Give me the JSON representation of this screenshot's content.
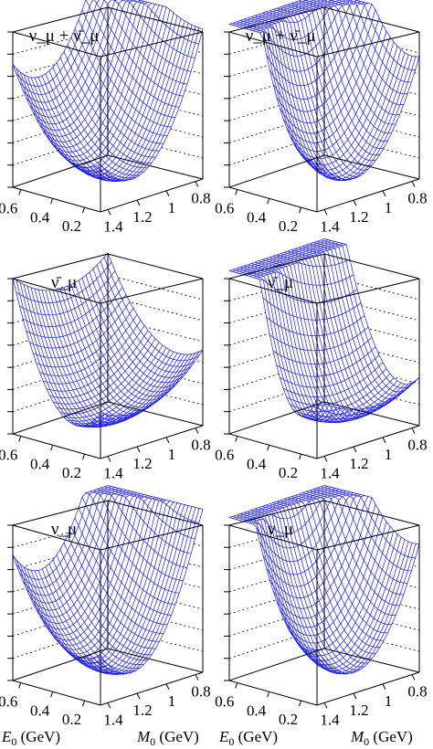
{
  "chart_data": [
    {
      "type": "surface",
      "panel": "top-left",
      "title": "ν_μ + ν̄_μ",
      "x_ticks": [
        "0.6",
        "0.4",
        "0.2"
      ],
      "y_ticks": [
        "1.4",
        "1.2",
        "1",
        "0.8"
      ],
      "surface": {
        "min_E0": 0.2,
        "min_M0": 1.25,
        "curv_E": 0.9,
        "curv_M": 1.7,
        "skew": 0.6,
        "mesh_rows": 26,
        "mesh_cols": 26
      }
    },
    {
      "type": "surface",
      "panel": "top-right",
      "title": "ν_μ + ν̄_μ",
      "x_ticks": [
        "0.6",
        "0.4",
        "0.2"
      ],
      "y_ticks": [
        "1.4",
        "1.2",
        "1",
        "0.8"
      ],
      "surface": {
        "min_E0": 0.15,
        "min_M0": 1.2,
        "curv_E": 2.6,
        "curv_M": 1.6,
        "skew": 0.2,
        "mesh_rows": 26,
        "mesh_cols": 26
      }
    },
    {
      "type": "surface",
      "panel": "middle-left",
      "title": "ν̄_μ",
      "x_ticks": [
        "0.6",
        "0.4",
        "0.2"
      ],
      "y_ticks": [
        "1.4",
        "1.2",
        "1",
        "0.8"
      ],
      "surface": {
        "min_E0": 0.25,
        "min_M0": 1.25,
        "curv_E": 1.6,
        "curv_M": 0.6,
        "skew": 0.1,
        "mesh_rows": 26,
        "mesh_cols": 26
      }
    },
    {
      "type": "surface",
      "panel": "middle-right",
      "title": "ν̄_μ",
      "x_ticks": [
        "0.6",
        "0.4",
        "0.2"
      ],
      "y_ticks": [
        "1.4",
        "1.2",
        "1",
        "0.8"
      ],
      "surface": {
        "min_E0": 0.2,
        "min_M0": 1.1,
        "curv_E": 3.8,
        "curv_M": 0.5,
        "skew": 0.2,
        "mesh_rows": 26,
        "mesh_cols": 26
      }
    },
    {
      "type": "surface",
      "panel": "bottom-left",
      "title": "ν_μ",
      "x_ticks": [
        "0.6",
        "0.4",
        "0.2"
      ],
      "y_ticks": [
        "1.4",
        "1.2",
        "1",
        "0.8"
      ],
      "surface": {
        "min_E0": 0.2,
        "min_M0": 1.25,
        "curv_E": 0.9,
        "curv_M": 1.9,
        "skew": 0.6,
        "mesh_rows": 26,
        "mesh_cols": 26
      }
    },
    {
      "type": "surface",
      "panel": "bottom-right",
      "title": "ν_μ",
      "x_ticks": [
        "0.6",
        "0.4",
        "0.2"
      ],
      "y_ticks": [
        "1.4",
        "1.2",
        "1",
        "0.8"
      ],
      "surface": {
        "min_E0": 0.15,
        "min_M0": 1.2,
        "curv_E": 2.0,
        "curv_M": 1.7,
        "skew": 0.2,
        "mesh_rows": 26,
        "mesh_cols": 26
      }
    }
  ],
  "axis_titles": {
    "e0_main": "E",
    "e0_sub": "0",
    "e0_unit": " (GeV)",
    "m0_main": "M",
    "m0_sub": "0",
    "m0_unit": " (GeV)"
  },
  "colors": {
    "mesh": "#1a1aff",
    "mesh_fill": "#6a6aff",
    "box": "#000000"
  }
}
